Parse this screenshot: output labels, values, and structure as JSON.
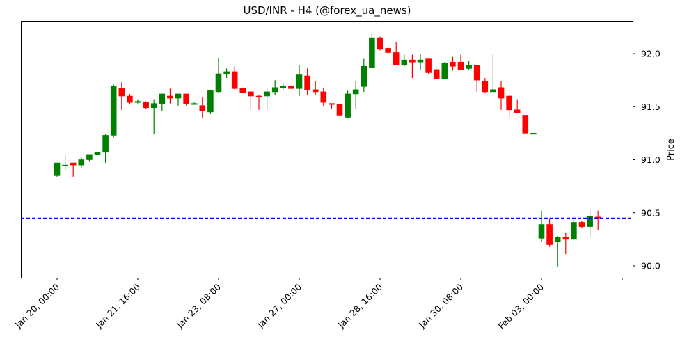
{
  "chart_data": {
    "type": "candlestick",
    "title": "USD/INR - H4 (@forex_ua_news)",
    "xlabel": "",
    "ylabel": "Price",
    "ylim": [
      89.88,
      92.32
    ],
    "y_ticks": [
      90.0,
      90.5,
      91.0,
      91.5,
      92.0
    ],
    "y_tick_labels": [
      "90.0",
      "90.5",
      "91.0",
      "91.5",
      "92.0"
    ],
    "x_tick_labels": [
      "Jan 20, 00:00",
      "Jan 21, 16:00",
      "Jan 23, 08:00",
      "Jan 27, 00:00",
      "Jan 28, 16:00",
      "Jan 30, 08:00",
      "Feb 03, 00:00",
      ""
    ],
    "x_tick_index": [
      0,
      10,
      20,
      30,
      40,
      50,
      60,
      70
    ],
    "grid": false,
    "y_axis_position": "right",
    "reference_line": {
      "value": 90.45,
      "style": "dashed",
      "color": "#0000ff"
    },
    "colors": {
      "up": "#008000",
      "down": "#ff0000",
      "reference": "#0000ff"
    },
    "candles": [
      {
        "o": 90.85,
        "h": 90.97,
        "l": 90.84,
        "c": 90.97
      },
      {
        "o": 90.94,
        "h": 91.05,
        "l": 90.9,
        "c": 90.95
      },
      {
        "o": 90.97,
        "h": 90.97,
        "l": 90.84,
        "c": 90.95
      },
      {
        "o": 90.95,
        "h": 91.03,
        "l": 90.92,
        "c": 91.0
      },
      {
        "o": 91.0,
        "h": 91.05,
        "l": 90.98,
        "c": 91.05
      },
      {
        "o": 91.05,
        "h": 91.07,
        "l": 91.05,
        "c": 91.07
      },
      {
        "o": 91.07,
        "h": 91.24,
        "l": 90.97,
        "c": 91.23
      },
      {
        "o": 91.23,
        "h": 91.71,
        "l": 91.21,
        "c": 91.69
      },
      {
        "o": 91.67,
        "h": 91.73,
        "l": 91.47,
        "c": 91.6
      },
      {
        "o": 91.6,
        "h": 91.62,
        "l": 91.52,
        "c": 91.54
      },
      {
        "o": 91.54,
        "h": 91.57,
        "l": 91.53,
        "c": 91.55
      },
      {
        "o": 91.54,
        "h": 91.55,
        "l": 91.48,
        "c": 91.49
      },
      {
        "o": 91.49,
        "h": 91.57,
        "l": 91.24,
        "c": 91.53
      },
      {
        "o": 91.53,
        "h": 91.62,
        "l": 91.46,
        "c": 91.62
      },
      {
        "o": 91.6,
        "h": 91.67,
        "l": 91.53,
        "c": 91.58
      },
      {
        "o": 91.58,
        "h": 91.62,
        "l": 91.51,
        "c": 91.62
      },
      {
        "o": 91.62,
        "h": 91.62,
        "l": 91.51,
        "c": 91.53
      },
      {
        "o": 91.52,
        "h": 91.54,
        "l": 91.52,
        "c": 91.53
      },
      {
        "o": 91.51,
        "h": 91.59,
        "l": 91.39,
        "c": 91.46
      },
      {
        "o": 91.45,
        "h": 91.66,
        "l": 91.43,
        "c": 91.65
      },
      {
        "o": 91.64,
        "h": 91.96,
        "l": 91.63,
        "c": 91.81
      },
      {
        "o": 91.81,
        "h": 91.86,
        "l": 91.77,
        "c": 91.83
      },
      {
        "o": 91.83,
        "h": 91.88,
        "l": 91.66,
        "c": 91.67
      },
      {
        "o": 91.67,
        "h": 91.68,
        "l": 91.63,
        "c": 91.63
      },
      {
        "o": 91.64,
        "h": 91.64,
        "l": 91.47,
        "c": 91.6
      },
      {
        "o": 91.6,
        "h": 91.61,
        "l": 91.47,
        "c": 91.59
      },
      {
        "o": 91.6,
        "h": 91.67,
        "l": 91.47,
        "c": 91.64
      },
      {
        "o": 91.64,
        "h": 91.75,
        "l": 91.61,
        "c": 91.68
      },
      {
        "o": 91.68,
        "h": 91.72,
        "l": 91.66,
        "c": 91.69
      },
      {
        "o": 91.69,
        "h": 91.7,
        "l": 91.67,
        "c": 91.67
      },
      {
        "o": 91.67,
        "h": 91.89,
        "l": 91.6,
        "c": 91.8
      },
      {
        "o": 91.79,
        "h": 91.86,
        "l": 91.61,
        "c": 91.66
      },
      {
        "o": 91.66,
        "h": 91.74,
        "l": 91.61,
        "c": 91.64
      },
      {
        "o": 91.64,
        "h": 91.68,
        "l": 91.5,
        "c": 91.54
      },
      {
        "o": 91.53,
        "h": 91.53,
        "l": 91.48,
        "c": 91.52
      },
      {
        "o": 91.52,
        "h": 91.52,
        "l": 91.41,
        "c": 91.42
      },
      {
        "o": 91.4,
        "h": 91.65,
        "l": 91.39,
        "c": 91.62
      },
      {
        "o": 91.62,
        "h": 91.74,
        "l": 91.48,
        "c": 91.66
      },
      {
        "o": 91.69,
        "h": 91.95,
        "l": 91.64,
        "c": 91.88
      },
      {
        "o": 91.87,
        "h": 92.19,
        "l": 91.86,
        "c": 92.15
      },
      {
        "o": 92.15,
        "h": 92.16,
        "l": 92.03,
        "c": 92.04
      },
      {
        "o": 92.05,
        "h": 92.06,
        "l": 92.0,
        "c": 92.01
      },
      {
        "o": 92.01,
        "h": 92.11,
        "l": 91.89,
        "c": 91.89
      },
      {
        "o": 91.89,
        "h": 91.99,
        "l": 91.88,
        "c": 91.94
      },
      {
        "o": 91.94,
        "h": 91.99,
        "l": 91.77,
        "c": 91.92
      },
      {
        "o": 91.92,
        "h": 92.0,
        "l": 91.85,
        "c": 91.94
      },
      {
        "o": 91.95,
        "h": 91.95,
        "l": 91.81,
        "c": 91.82
      },
      {
        "o": 91.85,
        "h": 91.85,
        "l": 91.76,
        "c": 91.76
      },
      {
        "o": 91.76,
        "h": 91.92,
        "l": 91.76,
        "c": 91.91
      },
      {
        "o": 91.92,
        "h": 91.97,
        "l": 91.84,
        "c": 91.88
      },
      {
        "o": 91.92,
        "h": 91.99,
        "l": 91.85,
        "c": 91.85
      },
      {
        "o": 91.86,
        "h": 91.93,
        "l": 91.85,
        "c": 91.89
      },
      {
        "o": 91.89,
        "h": 91.89,
        "l": 91.64,
        "c": 91.75
      },
      {
        "o": 91.74,
        "h": 91.77,
        "l": 91.63,
        "c": 91.64
      },
      {
        "o": 91.64,
        "h": 92.0,
        "l": 91.64,
        "c": 91.66
      },
      {
        "o": 91.68,
        "h": 91.74,
        "l": 91.47,
        "c": 91.58
      },
      {
        "o": 91.6,
        "h": 91.61,
        "l": 91.4,
        "c": 91.47
      },
      {
        "o": 91.47,
        "h": 91.57,
        "l": 91.44,
        "c": 91.44
      },
      {
        "o": 91.42,
        "h": 91.42,
        "l": 91.25,
        "c": 91.25
      },
      {
        "o": 91.25,
        "h": 91.25,
        "l": 91.25,
        "c": 91.25
      },
      {
        "o": 90.26,
        "h": 90.52,
        "l": 90.23,
        "c": 90.39
      },
      {
        "o": 90.39,
        "h": 90.45,
        "l": 90.18,
        "c": 90.2
      },
      {
        "o": 90.23,
        "h": 90.28,
        "l": 89.99,
        "c": 90.27
      },
      {
        "o": 90.27,
        "h": 90.31,
        "l": 90.11,
        "c": 90.25
      },
      {
        "o": 90.25,
        "h": 90.45,
        "l": 90.24,
        "c": 90.41
      },
      {
        "o": 90.41,
        "h": 90.42,
        "l": 90.36,
        "c": 90.37
      },
      {
        "o": 90.37,
        "h": 90.53,
        "l": 90.27,
        "c": 90.47
      },
      {
        "o": 90.46,
        "h": 90.52,
        "l": 90.34,
        "c": 90.45
      }
    ],
    "x_index": [
      0,
      1,
      2,
      3,
      4,
      5,
      6,
      7,
      8,
      9,
      10,
      11,
      12,
      13,
      14,
      15,
      16,
      17,
      18,
      19,
      20,
      21,
      22,
      23,
      24,
      25,
      26,
      27,
      28,
      29,
      30,
      31,
      32,
      33,
      34,
      35,
      36,
      37,
      38,
      39,
      40,
      41,
      42,
      43,
      44,
      45,
      46,
      47,
      48,
      49,
      50,
      51,
      52,
      53,
      54,
      55,
      56,
      57,
      58,
      59,
      60,
      61,
      62,
      63,
      64,
      65,
      66,
      67
    ]
  }
}
